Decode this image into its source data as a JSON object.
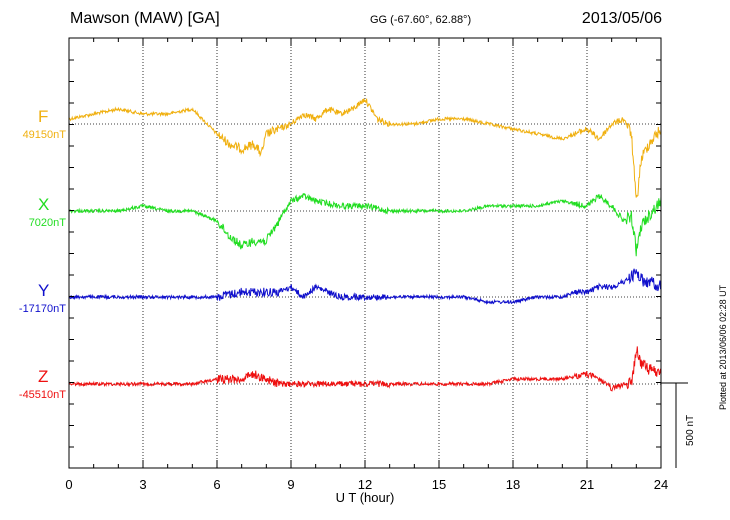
{
  "header": {
    "station": "Mawson (MAW)  [GA]",
    "coords": "GG (-67.60°,  62.88°)",
    "date": "2013/05/06"
  },
  "plotted_at": "Plotted at 2013/06/06 02:28 UT",
  "chart_data": {
    "type": "line",
    "title": "Mawson (MAW) [GA] 2013/05/06",
    "xlabel": "U T (hour)",
    "xlim": [
      0,
      24
    ],
    "xticks": [
      "0",
      "3",
      "6",
      "9",
      "12",
      "15",
      "18",
      "21",
      "24"
    ],
    "scale_bar": {
      "label": "500 nT",
      "value_nT": 500
    },
    "series": [
      {
        "name": "F",
        "baseline": "49150nT",
        "color": "#f0b010",
        "hours": [
          0,
          1,
          2,
          3,
          4,
          5,
          6,
          6.5,
          7,
          7.5,
          7.8,
          8,
          8.5,
          9,
          9.5,
          10,
          10.5,
          11,
          11.5,
          12,
          12.5,
          13,
          14,
          15,
          16,
          17,
          18,
          19,
          20,
          21,
          21.5,
          22,
          22.5,
          22.8,
          23,
          23.2,
          23.5,
          24
        ],
        "offsets": [
          -5,
          -10,
          -15,
          -10,
          -10,
          -15,
          10,
          20,
          25,
          20,
          30,
          10,
          5,
          0,
          -10,
          -5,
          -15,
          -10,
          -15,
          -25,
          -5,
          0,
          0,
          -5,
          -5,
          0,
          5,
          10,
          15,
          5,
          15,
          0,
          -5,
          10,
          80,
          35,
          20,
          5
        ]
      },
      {
        "name": "X",
        "baseline": "7020nT",
        "color": "#22dd22",
        "hours": [
          0,
          2,
          3,
          4,
          5,
          6,
          6.5,
          7,
          7.5,
          8,
          8.5,
          9,
          9.5,
          10,
          11,
          12,
          13,
          14,
          15,
          16,
          17,
          18,
          19,
          20,
          21,
          21.5,
          22,
          22.5,
          22.8,
          23,
          23.2,
          23.5,
          24
        ],
        "offsets": [
          0,
          0,
          -5,
          0,
          0,
          10,
          25,
          35,
          30,
          30,
          10,
          -10,
          -15,
          -10,
          -5,
          -5,
          0,
          0,
          0,
          0,
          -5,
          -5,
          -5,
          -10,
          -5,
          -15,
          -5,
          10,
          5,
          40,
          15,
          5,
          -10
        ]
      },
      {
        "name": "Y",
        "baseline": "-17170nT",
        "color": "#1010cc",
        "hours": [
          0,
          2,
          3,
          4,
          5,
          6,
          7,
          8,
          8.5,
          9,
          9.5,
          10,
          10.5,
          11,
          12,
          13,
          14,
          15,
          16,
          17,
          18,
          19,
          20,
          20.5,
          21,
          21.5,
          22,
          22.5,
          23,
          23.3,
          23.6,
          24
        ],
        "offsets": [
          0,
          0,
          0,
          0,
          0,
          0,
          -5,
          -5,
          -5,
          -10,
          0,
          -10,
          -5,
          0,
          0,
          0,
          0,
          0,
          0,
          5,
          5,
          0,
          0,
          -5,
          -5,
          -10,
          -10,
          -15,
          -25,
          -15,
          -15,
          -10
        ]
      },
      {
        "name": "Z",
        "baseline": "-45510nT",
        "color": "#ee1010",
        "hours": [
          0,
          2,
          3,
          4,
          5,
          6,
          7,
          7.5,
          8,
          8.5,
          9,
          10,
          11,
          12,
          13,
          14,
          15,
          16,
          17,
          18,
          19,
          20,
          21,
          21.5,
          22,
          22.5,
          22.8,
          23,
          23.2,
          23.5,
          24
        ],
        "offsets": [
          0,
          0,
          0,
          0,
          0,
          -5,
          -5,
          -10,
          -5,
          0,
          0,
          0,
          0,
          0,
          0,
          0,
          0,
          0,
          0,
          -5,
          -5,
          -5,
          -10,
          -5,
          5,
          0,
          0,
          -35,
          -20,
          -15,
          -10
        ]
      }
    ]
  }
}
